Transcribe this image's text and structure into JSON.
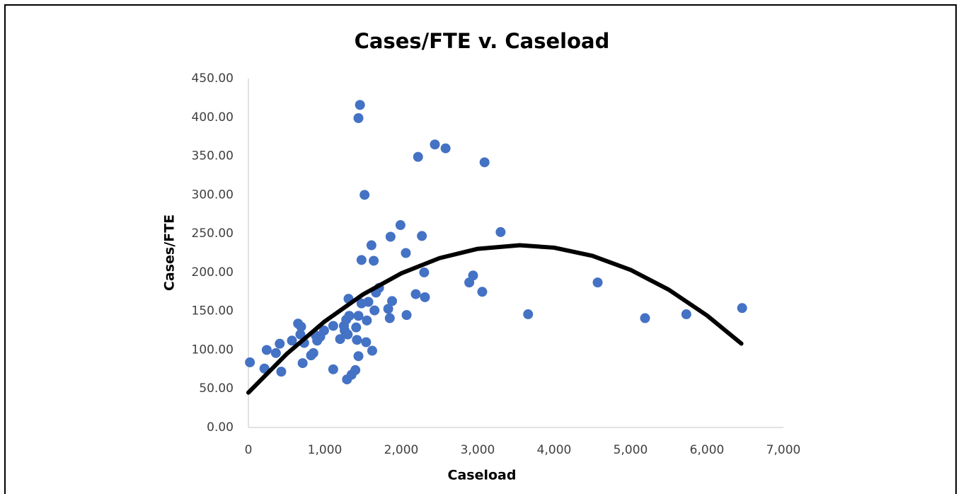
{
  "chart_data": {
    "type": "scatter",
    "title": "Cases/FTE v. Caseload",
    "x_label": "Caseload",
    "y_label": "Cases/FTE",
    "color": "#4472c4",
    "x": [
      20,
      210,
      240,
      360,
      430,
      410,
      570,
      650,
      680,
      690,
      710,
      730,
      820,
      850,
      880,
      900,
      940,
      990,
      1110,
      1110,
      1200,
      1250,
      1260,
      1280,
      1290,
      1300,
      1310,
      1320,
      1350,
      1400,
      1410,
      1420,
      1440,
      1440,
      1440,
      1460,
      1480,
      1480,
      1520,
      1540,
      1550,
      1570,
      1610,
      1620,
      1640,
      1650,
      1670,
      1710,
      1830,
      1850,
      1860,
      1880,
      1990,
      2060,
      2070,
      2190,
      2220,
      2270,
      2300,
      2310,
      2440,
      2580,
      2890,
      2940,
      3060,
      3090,
      3300,
      3660,
      4570,
      5190,
      5730,
      6460
    ],
    "values": [
      84,
      76,
      100,
      96,
      72,
      108,
      112,
      134,
      120,
      130,
      83,
      109,
      93,
      96,
      119,
      112,
      117,
      125,
      131,
      75,
      114,
      131,
      125,
      139,
      62,
      120,
      166,
      144,
      68,
      74,
      129,
      113,
      144,
      92,
      399,
      416,
      160,
      216,
      300,
      110,
      138,
      162,
      235,
      99,
      215,
      151,
      174,
      180,
      153,
      141,
      246,
      163,
      261,
      225,
      145,
      172,
      349,
      247,
      200,
      168,
      365,
      360,
      187,
      196,
      175,
      342,
      252,
      146,
      187,
      141,
      146,
      154
    ],
    "trendline": {
      "color": "#000000",
      "x": [
        0,
        500,
        1000,
        1500,
        2000,
        2500,
        3000,
        3550,
        4000,
        4500,
        5000,
        5500,
        6000,
        6450
      ],
      "values": [
        45.0,
        94.7,
        136.9,
        171.6,
        198.8,
        218.4,
        230.4,
        235,
        231.9,
        221.4,
        203.3,
        177.7,
        144.5,
        108.2
      ]
    },
    "xlim": [
      0,
      7000
    ],
    "xticks": [
      0,
      {
        "value": 1000,
        "label": "1,000"
      },
      {
        "value": 2000,
        "label": "2,000"
      },
      {
        "value": 3000,
        "label": "3,000"
      },
      {
        "value": 4000,
        "label": "4,000"
      },
      {
        "value": 5000,
        "label": "5,000"
      },
      {
        "value": 6000,
        "label": "6,000"
      },
      {
        "value": 7000,
        "label": "7,000"
      }
    ],
    "ylim": [
      0,
      450
    ],
    "yticks": [
      {
        "value": 0,
        "label": "0.00"
      },
      {
        "value": 50,
        "label": "50.00"
      },
      {
        "value": 100,
        "label": "100.00"
      },
      {
        "value": 150,
        "label": "150.00"
      },
      {
        "value": 200,
        "label": "200.00"
      },
      {
        "value": 250,
        "label": "250.00"
      },
      {
        "value": 300,
        "label": "300.00"
      },
      {
        "value": 350,
        "label": "350.00"
      },
      {
        "value": 400,
        "label": "400.00"
      },
      {
        "value": 450,
        "label": "450.00"
      }
    ],
    "grid": false
  }
}
